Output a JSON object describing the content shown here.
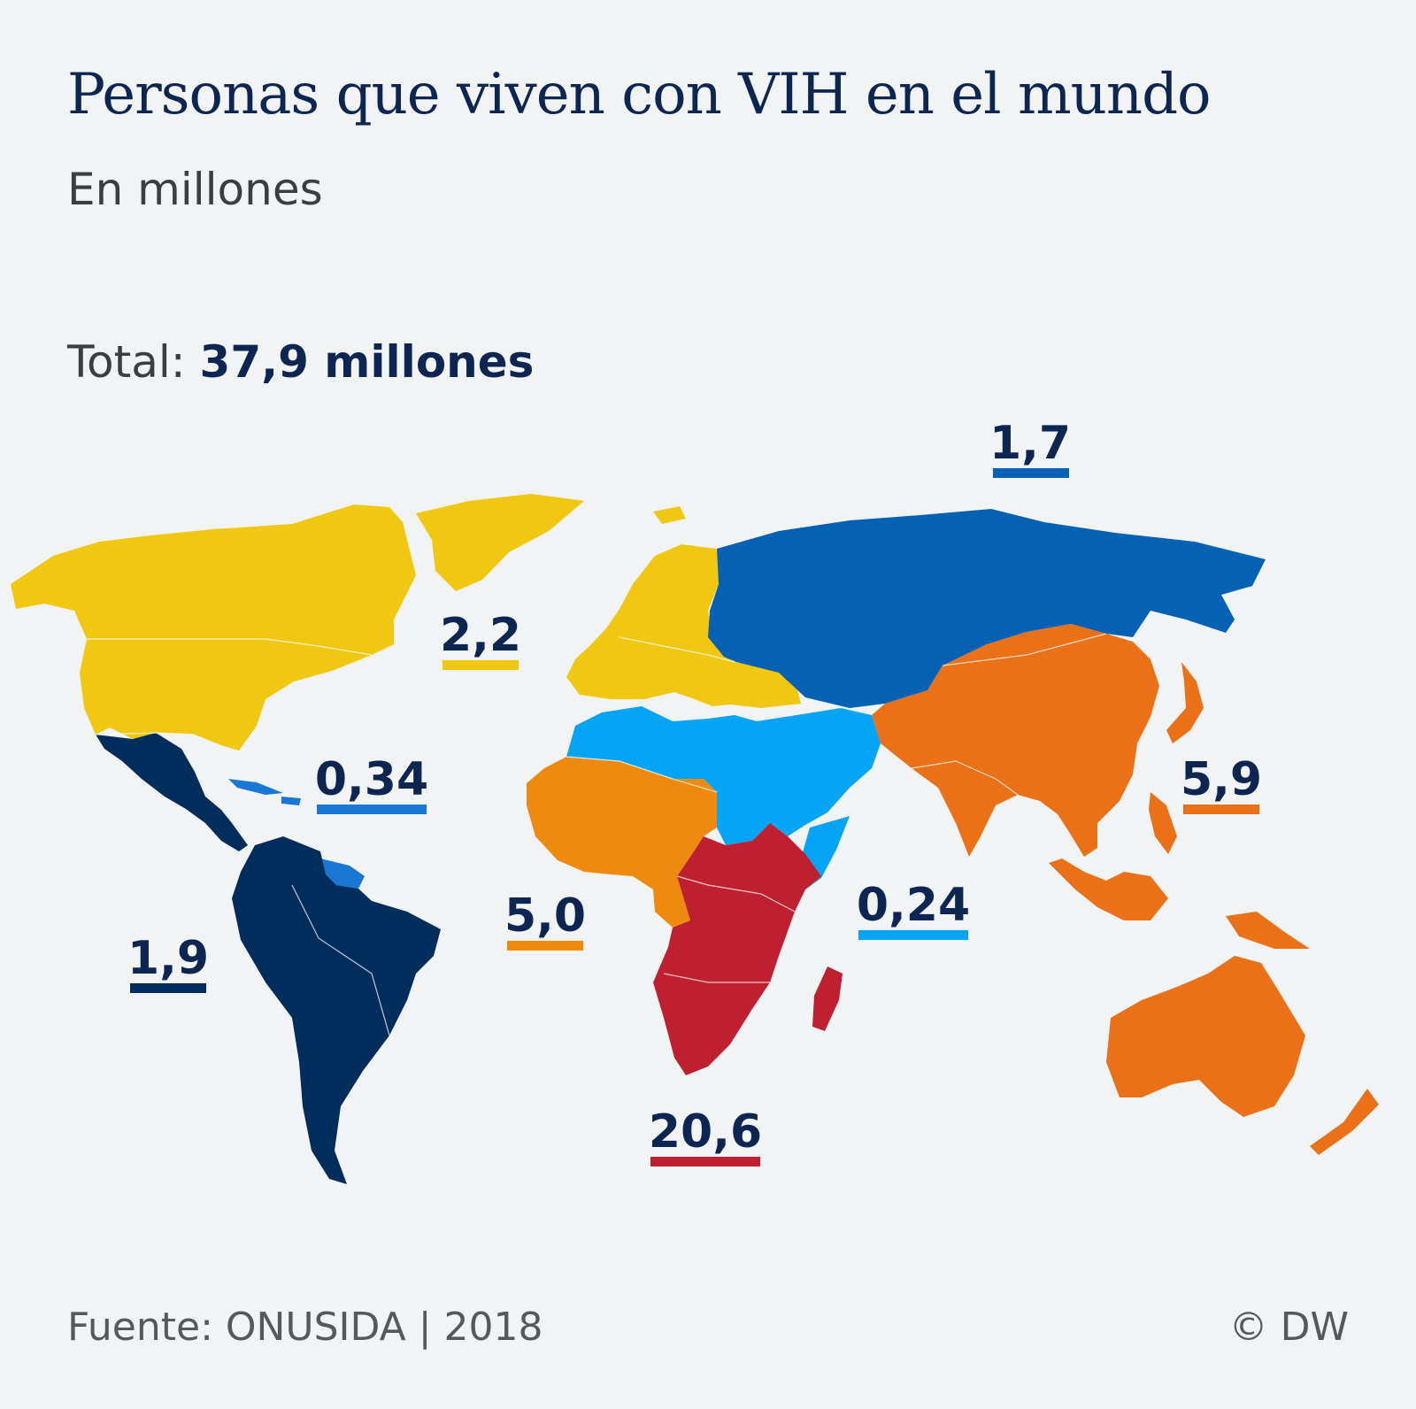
{
  "header": {
    "title": "Personas que viven con VIH en el mundo",
    "subtitle": "En millones"
  },
  "total": {
    "label": "Total:",
    "value": "37,9 millones"
  },
  "footer": {
    "source": "Fuente: ONUSIDA | 2018",
    "copyright": "© DW"
  },
  "regions": [
    {
      "id": "europe-north-america",
      "value": "2,2",
      "color": "#f0c811"
    },
    {
      "id": "eastern-europe-central-asia",
      "value": "1,7",
      "color": "#0561b3"
    },
    {
      "id": "caribbean",
      "value": "0,34",
      "color": "#1a78d4"
    },
    {
      "id": "latin-america",
      "value": "1,9",
      "color": "#002d5c"
    },
    {
      "id": "west-central-africa",
      "value": "5,0",
      "color": "#ee8a0f"
    },
    {
      "id": "middle-east-north-africa",
      "value": "0,24",
      "color": "#06a4f5"
    },
    {
      "id": "asia-pacific",
      "value": "5,9",
      "color": "#ea7118"
    },
    {
      "id": "eastern-southern-africa",
      "value": "20,6",
      "color": "#bf202f"
    }
  ]
}
